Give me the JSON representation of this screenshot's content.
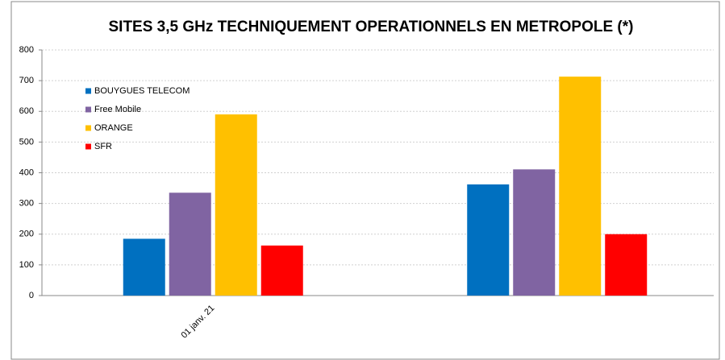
{
  "chart_data": {
    "type": "bar",
    "title": "SITES 3,5 GHz TECHNIQUEMENT OPERATIONNELS EN METROPOLE (*)",
    "categories": [
      "01 janv. 21",
      null
    ],
    "series": [
      {
        "name": "BOUYGUES TELECOM",
        "color": "#0070c0",
        "values": [
          185,
          362
        ]
      },
      {
        "name": "Free Mobile",
        "color": "#8064a2",
        "values": [
          335,
          411
        ]
      },
      {
        "name": "ORANGE",
        "color": "#ffc000",
        "values": [
          590,
          713
        ]
      },
      {
        "name": "SFR",
        "color": "#ff0000",
        "values": [
          163,
          200
        ]
      }
    ],
    "ylim": [
      0,
      800
    ],
    "yticks": [
      0,
      100,
      200,
      300,
      400,
      500,
      600,
      700,
      800
    ],
    "grid": true,
    "legend": "upper left"
  }
}
